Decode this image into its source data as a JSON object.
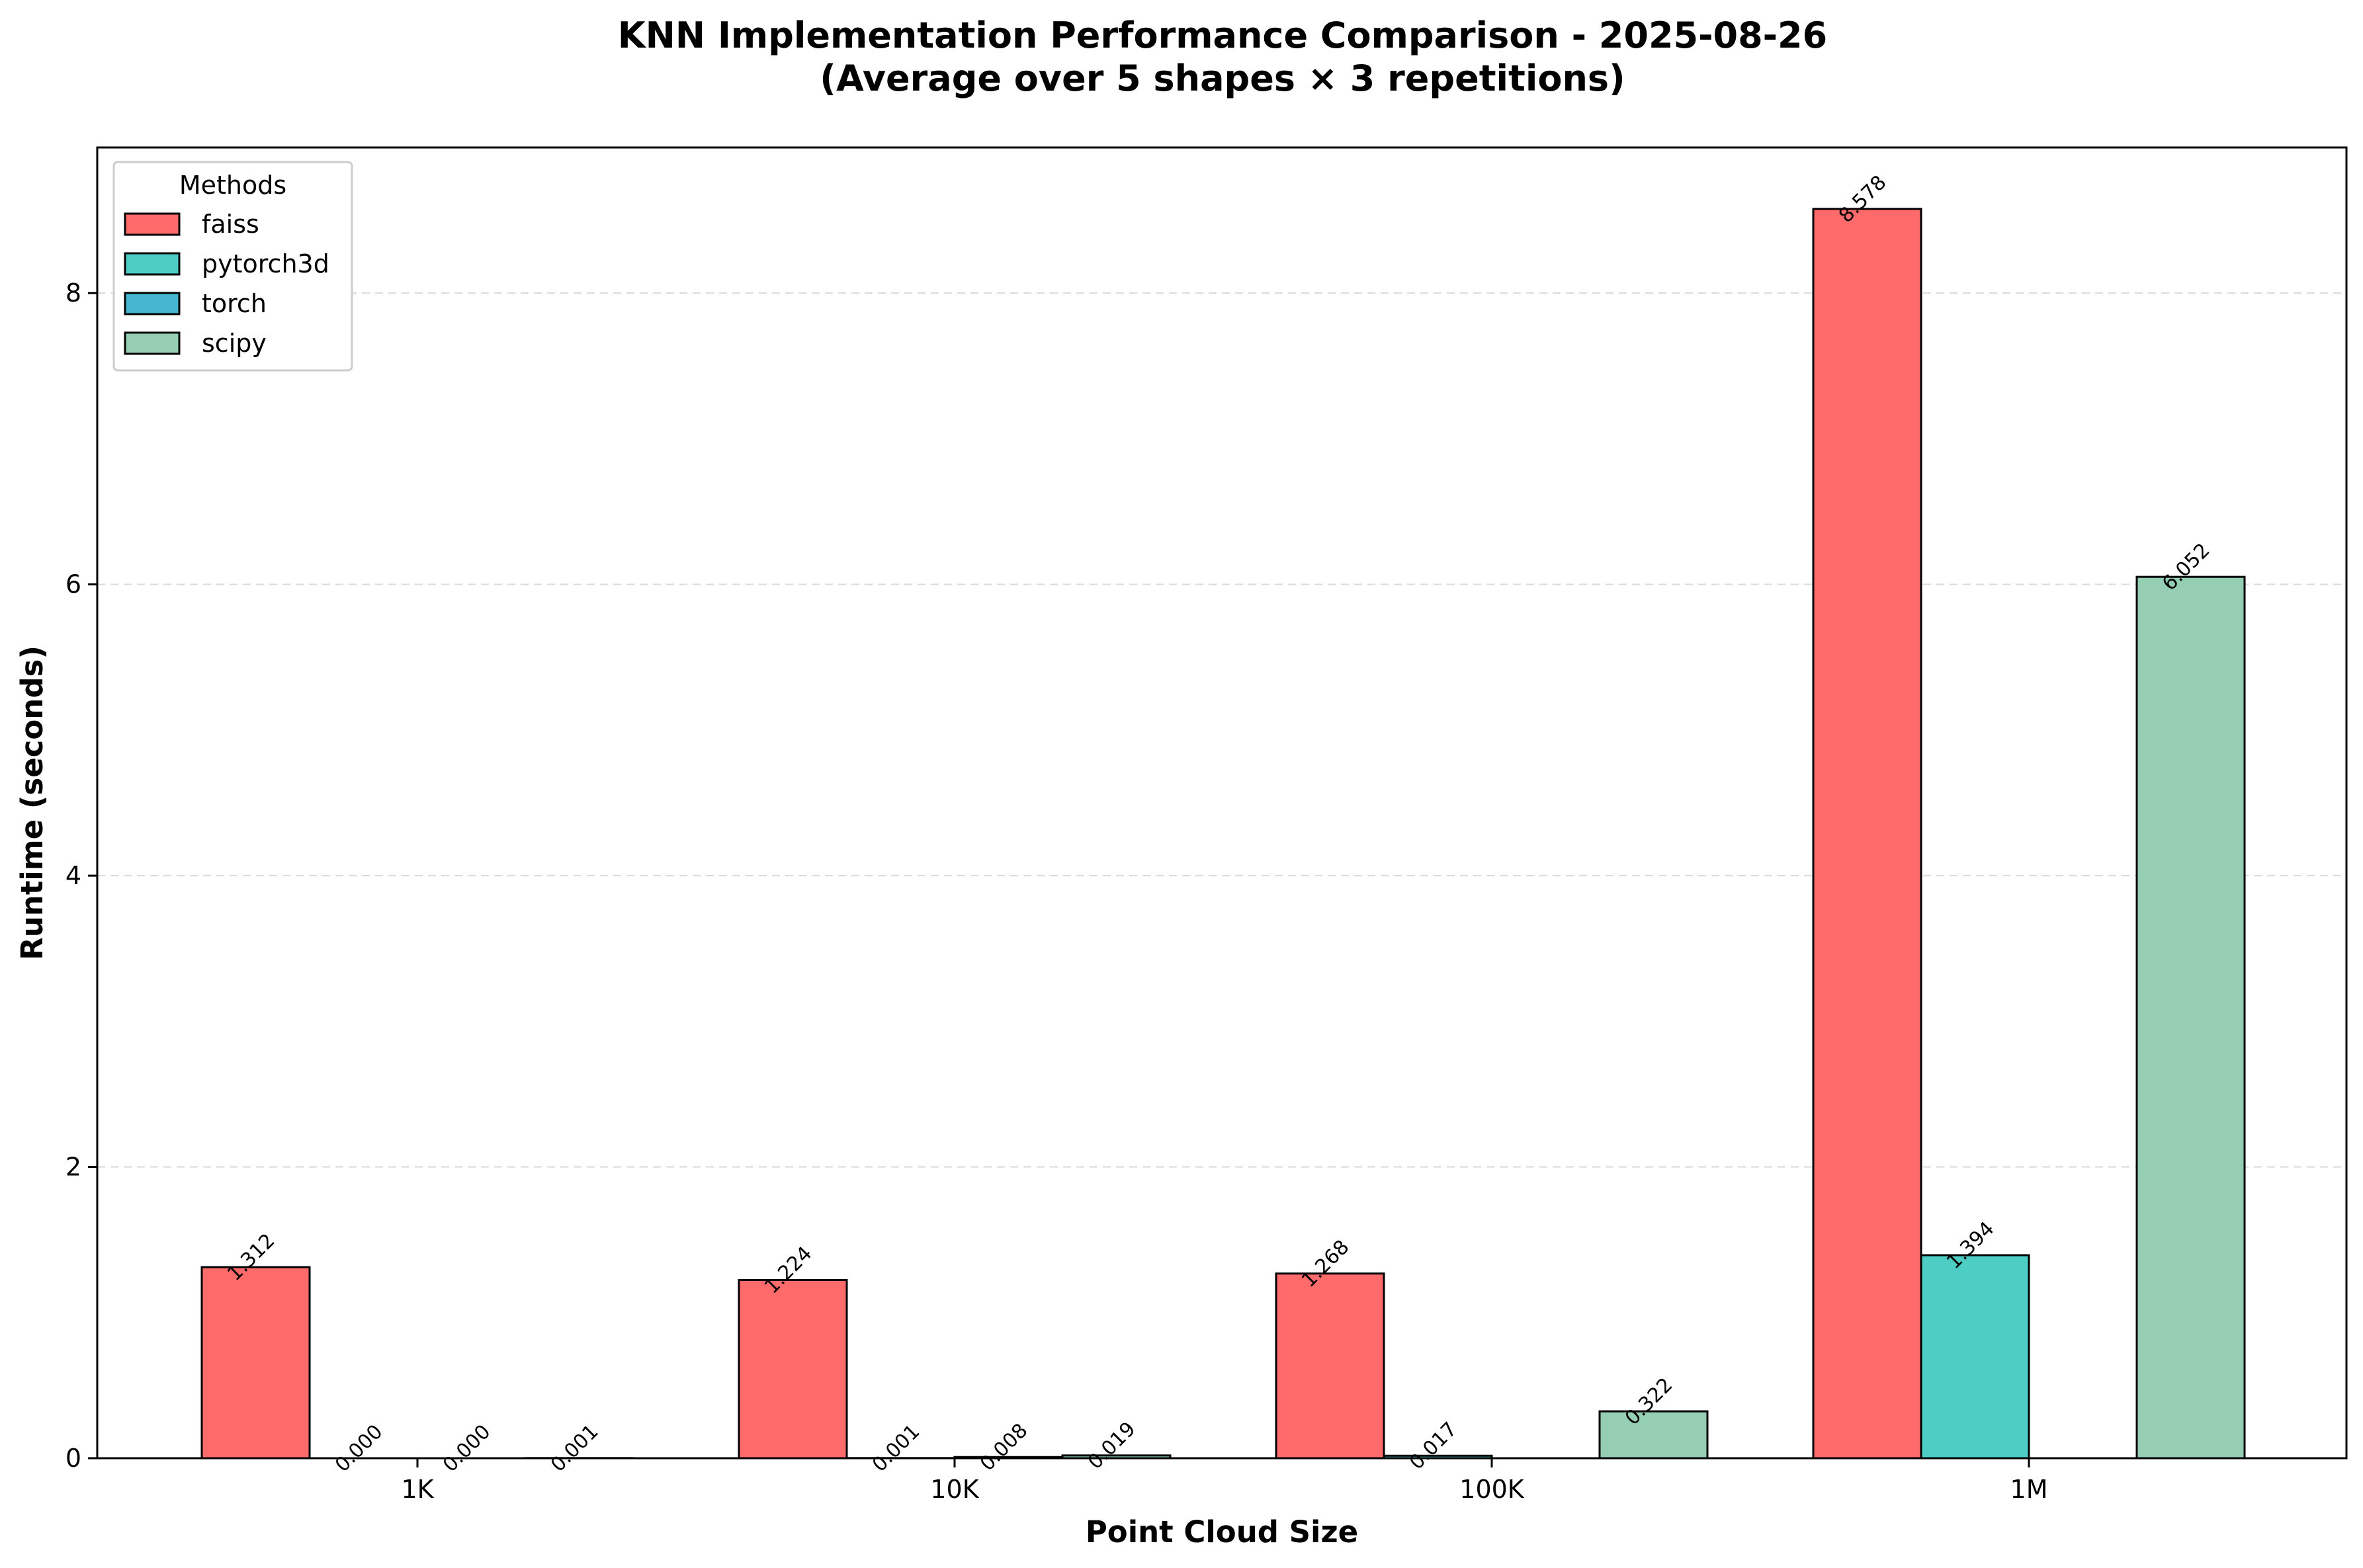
{
  "chart_data": {
    "type": "bar",
    "title": "KNN Implementation Performance Comparison - 2025-08-26",
    "subtitle": "(Average over 5 shapes × 3 repetitions)",
    "xlabel": "Point Cloud Size",
    "ylabel": "Runtime (seconds)",
    "categories": [
      "1K",
      "10K",
      "100K",
      "1M"
    ],
    "ylim": [
      0,
      9
    ],
    "yticks": [
      0,
      2,
      4,
      6,
      8
    ],
    "grid": "y-dashed",
    "legend": {
      "title": "Methods",
      "placement": "top-left"
    },
    "series": [
      {
        "name": "faiss",
        "color": "#ff6b6b",
        "values": [
          1.312,
          1.224,
          1.268,
          8.578
        ],
        "labels": [
          "1.312",
          "1.224",
          "1.268",
          "8.578"
        ]
      },
      {
        "name": "pytorch3d",
        "color": "#4ecdc4",
        "values": [
          0.0,
          0.001,
          0.017,
          1.394
        ],
        "labels": [
          "0.000",
          "0.001",
          "0.017",
          "1.394"
        ]
      },
      {
        "name": "torch",
        "color": "#45b7d1",
        "values": [
          0.0,
          0.008,
          null,
          null
        ],
        "labels": [
          "0.000",
          "0.008",
          null,
          null
        ]
      },
      {
        "name": "scipy",
        "color": "#96ceb4",
        "values": [
          0.001,
          0.019,
          0.322,
          6.052
        ],
        "labels": [
          "0.001",
          "0.019",
          "0.322",
          "6.052"
        ]
      }
    ]
  }
}
